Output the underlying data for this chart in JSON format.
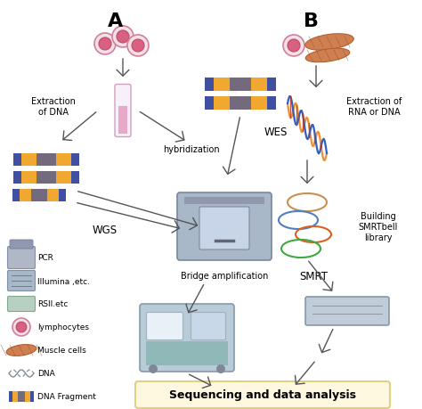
{
  "background_color": "#ffffff",
  "label_A": "A",
  "label_B": "B",
  "text_extraction_dna": "Extraction\nof DNA",
  "text_hybridization": "hybridization",
  "text_wes": "WES",
  "text_wgs": "WGS",
  "text_bridge_amp": "Bridge amplification",
  "text_extraction_rna": "Extraction of\nRNA or DNA",
  "text_building": "Building\nSMRTbell\nlibrary",
  "text_smrt": "SMRT",
  "text_bottom": "Sequencing and data analysis",
  "legend_items": [
    "PCR",
    "Illumina ,etc.",
    "RSll.etc",
    "lymphocytes",
    "Muscle cells",
    "DNA",
    "DNA Fragment"
  ],
  "dna_orange": "#f0a830",
  "dna_blue": "#4050a0",
  "dna_purple": "#5060a8",
  "cell_outer": "#f0d0d8",
  "cell_edge": "#d07090",
  "cell_inner": "#d06080",
  "tube_body": "#fce8f0",
  "tube_liquid": "#e090b8",
  "machine_gray": "#a8b8c8",
  "machine_light": "#c8d8e8",
  "win_color": "#c8d8f0",
  "bottom_bg": "#fef8e0",
  "bottom_edge": "#e0d080",
  "loop_colors": [
    "#c89050",
    "#5080c0",
    "#d86020",
    "#40a840"
  ],
  "helix_orange": "#f09030",
  "helix_blue": "#3060c0",
  "helix_red": "#c03020",
  "seq_teal": "#90c0c0",
  "seq_blue": "#80a8c0",
  "seq_light": "#d8e8f0"
}
